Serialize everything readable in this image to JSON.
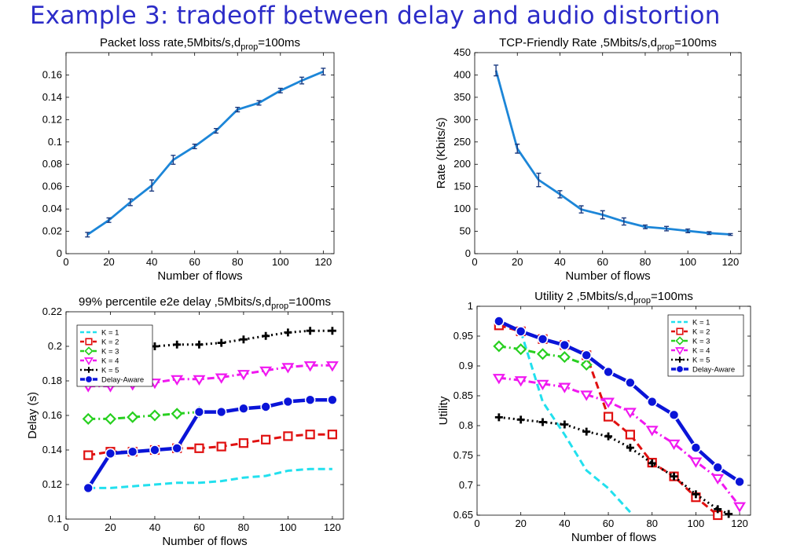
{
  "slide_title": "Example 3: tradeoff between delay and audio distortion",
  "chart_data": [
    {
      "id": "loss",
      "type": "line",
      "title": "Packet loss rate,5Mbits/s,d",
      "title_sub": "prop",
      "title_suffix": "=100ms",
      "xlabel": "Number of flows",
      "ylabel": "",
      "xlim": [
        0,
        125
      ],
      "ylim": [
        0,
        0.18
      ],
      "xticks": [
        0,
        20,
        40,
        60,
        80,
        100,
        120
      ],
      "yticks": [
        0,
        0.02,
        0.04,
        0.06,
        0.08,
        0.1,
        0.12,
        0.14,
        0.16
      ],
      "ytick_labels": [
        "0",
        "0.02",
        "0.04",
        "0.06",
        "0.08",
        "0.1",
        "0.12",
        "0.14",
        "0.16"
      ],
      "grid": false,
      "error_bars": true,
      "series": [
        {
          "color": "#1c86d8",
          "x": [
            10,
            20,
            30,
            40,
            50,
            60,
            70,
            80,
            90,
            100,
            110,
            120
          ],
          "y": [
            0.017,
            0.03,
            0.046,
            0.061,
            0.084,
            0.096,
            0.11,
            0.129,
            0.135,
            0.146,
            0.155,
            0.163
          ],
          "err": [
            0.002,
            0.002,
            0.003,
            0.005,
            0.004,
            0.002,
            0.002,
            0.002,
            0.002,
            0.002,
            0.003,
            0.003
          ]
        }
      ]
    },
    {
      "id": "rate",
      "type": "line",
      "title": "TCP-Friendly Rate ,5Mbits/s,d",
      "title_sub": "prop",
      "title_suffix": "=100ms",
      "xlabel": "Number of flows",
      "ylabel": "Rate (Kbits/s)",
      "xlim": [
        0,
        125
      ],
      "ylim": [
        0,
        450
      ],
      "xticks": [
        0,
        20,
        40,
        60,
        80,
        100,
        120
      ],
      "yticks": [
        0,
        50,
        100,
        150,
        200,
        250,
        300,
        350,
        400,
        450
      ],
      "ytick_labels": [
        "0",
        "50",
        "100",
        "150",
        "200",
        "250",
        "300",
        "350",
        "400",
        "450"
      ],
      "grid": false,
      "error_bars": true,
      "series": [
        {
          "color": "#1c86d8",
          "x": [
            10,
            20,
            30,
            40,
            50,
            60,
            70,
            80,
            90,
            100,
            110,
            120
          ],
          "y": [
            410,
            235,
            165,
            133,
            99,
            87,
            72,
            60,
            56,
            51,
            46,
            43
          ],
          "err": [
            12,
            10,
            15,
            8,
            8,
            9,
            8,
            4,
            5,
            4,
            3,
            2
          ]
        }
      ]
    },
    {
      "id": "delay",
      "type": "line",
      "title": "99% percentile e2e delay ,5Mbits/s,d",
      "title_sub": "prop",
      "title_suffix": "=100ms",
      "xlabel": "Number of flows",
      "ylabel": "Delay (s)",
      "xlim": [
        0,
        125
      ],
      "ylim": [
        0.1,
        0.22
      ],
      "xticks": [
        0,
        20,
        40,
        60,
        80,
        100,
        120
      ],
      "yticks": [
        0.1,
        0.12,
        0.14,
        0.16,
        0.18,
        0.2,
        0.22
      ],
      "ytick_labels": [
        "0.1",
        "0.12",
        "0.14",
        "0.16",
        "0.18",
        "0.2",
        "0.22"
      ],
      "grid": false,
      "legend_position": "top-left",
      "series": [
        {
          "name": "K = 1",
          "color": "#22e0ee",
          "dash": "dashed",
          "marker": "none",
          "x": [
            10,
            20,
            30,
            40,
            50,
            60,
            70,
            80,
            90,
            100,
            110,
            120
          ],
          "y": [
            0.118,
            0.118,
            0.119,
            0.12,
            0.121,
            0.121,
            0.122,
            0.124,
            0.125,
            0.128,
            0.129,
            0.129
          ]
        },
        {
          "name": "K = 2",
          "color": "#e01010",
          "dash": "dashed",
          "marker": "square",
          "x": [
            10,
            20,
            30,
            40,
            50,
            60,
            70,
            80,
            90,
            100,
            110,
            120
          ],
          "y": [
            0.137,
            0.139,
            0.139,
            0.14,
            0.141,
            0.141,
            0.142,
            0.144,
            0.146,
            0.148,
            0.149,
            0.149
          ]
        },
        {
          "name": "K = 3",
          "color": "#28d020",
          "dash": "dashdot",
          "marker": "diamond",
          "x": [
            10,
            20,
            30,
            40,
            50,
            60
          ],
          "y": [
            0.158,
            0.158,
            0.159,
            0.16,
            0.161,
            0.162
          ]
        },
        {
          "name": "K = 4",
          "color": "#f018f0",
          "dash": "dashdot",
          "marker": "triangle-down",
          "x": [
            10,
            20,
            30,
            40,
            50,
            60,
            70,
            80,
            90,
            100,
            110,
            120
          ],
          "y": [
            0.177,
            0.177,
            0.178,
            0.179,
            0.181,
            0.181,
            0.182,
            0.184,
            0.186,
            0.188,
            0.189,
            0.189
          ]
        },
        {
          "name": "K = 5",
          "color": "#000000",
          "dash": "dotted",
          "marker": "plus",
          "x": [
            10,
            20,
            30,
            40,
            50,
            60,
            70,
            80,
            90,
            100,
            110,
            120
          ],
          "y": [
            0.197,
            0.198,
            0.199,
            0.2,
            0.201,
            0.201,
            0.202,
            0.204,
            0.206,
            0.208,
            0.209,
            0.209
          ]
        },
        {
          "name": "Delay-Aware",
          "color": "#0a14d8",
          "dash": "solid",
          "marker": "circle",
          "x": [
            10,
            20,
            30,
            40,
            50,
            60,
            70,
            80,
            90,
            100,
            110,
            120
          ],
          "y": [
            0.118,
            0.138,
            0.139,
            0.14,
            0.141,
            0.162,
            0.162,
            0.164,
            0.165,
            0.168,
            0.169,
            0.169
          ]
        }
      ]
    },
    {
      "id": "utility",
      "type": "line",
      "title": "Utility 2 ,5Mbits/s,d",
      "title_sub": "prop",
      "title_suffix": "=100ms",
      "xlabel": "Number of flows",
      "ylabel": "Utility",
      "xlim": [
        0,
        125
      ],
      "ylim": [
        0.65,
        1.0
      ],
      "xticks": [
        0,
        20,
        40,
        60,
        80,
        100,
        120
      ],
      "yticks": [
        0.65,
        0.7,
        0.75,
        0.8,
        0.85,
        0.9,
        0.95,
        1.0
      ],
      "ytick_labels": [
        "0.65",
        "0.7",
        "0.75",
        "0.8",
        "0.85",
        "0.9",
        "0.95",
        "1"
      ],
      "grid": false,
      "legend_position": "top-right",
      "series": [
        {
          "name": "K = 1",
          "color": "#22e0ee",
          "dash": "dashed",
          "marker": "none",
          "x": [
            20,
            30,
            40,
            50,
            60,
            70
          ],
          "y": [
            0.958,
            0.84,
            0.785,
            0.725,
            0.695,
            0.655
          ]
        },
        {
          "name": "K = 2",
          "color": "#e01010",
          "dash": "dashed",
          "marker": "square",
          "x": [
            10,
            20,
            30,
            40,
            50,
            60,
            70,
            80,
            90,
            100,
            110
          ],
          "y": [
            0.968,
            0.958,
            0.945,
            0.935,
            0.918,
            0.815,
            0.785,
            0.738,
            0.715,
            0.68,
            0.65
          ]
        },
        {
          "name": "K = 3",
          "color": "#28d020",
          "dash": "dashdot",
          "marker": "diamond",
          "x": [
            10,
            20,
            30,
            40,
            50
          ],
          "y": [
            0.933,
            0.928,
            0.92,
            0.915,
            0.902
          ]
        },
        {
          "name": "K = 4",
          "color": "#f018f0",
          "dash": "dashdot",
          "marker": "triangle-down",
          "x": [
            10,
            20,
            30,
            40,
            50,
            60,
            70,
            80,
            90,
            100,
            110,
            120
          ],
          "y": [
            0.88,
            0.876,
            0.87,
            0.865,
            0.852,
            0.84,
            0.823,
            0.793,
            0.77,
            0.74,
            0.712,
            0.665
          ]
        },
        {
          "name": "K = 5",
          "color": "#000000",
          "dash": "dotted",
          "marker": "plus",
          "x": [
            10,
            20,
            30,
            40,
            50,
            60,
            70,
            80,
            90,
            100,
            110,
            115
          ],
          "y": [
            0.814,
            0.81,
            0.806,
            0.802,
            0.79,
            0.782,
            0.763,
            0.737,
            0.715,
            0.685,
            0.66,
            0.652
          ]
        },
        {
          "name": "Delay-Aware",
          "color": "#0a14d8",
          "dash": "solid",
          "marker": "circle",
          "x": [
            10,
            20,
            30,
            40,
            50,
            60,
            70,
            80,
            90,
            100,
            110,
            120
          ],
          "y": [
            0.975,
            0.958,
            0.945,
            0.935,
            0.918,
            0.89,
            0.872,
            0.84,
            0.818,
            0.763,
            0.73,
            0.706
          ]
        }
      ]
    }
  ]
}
